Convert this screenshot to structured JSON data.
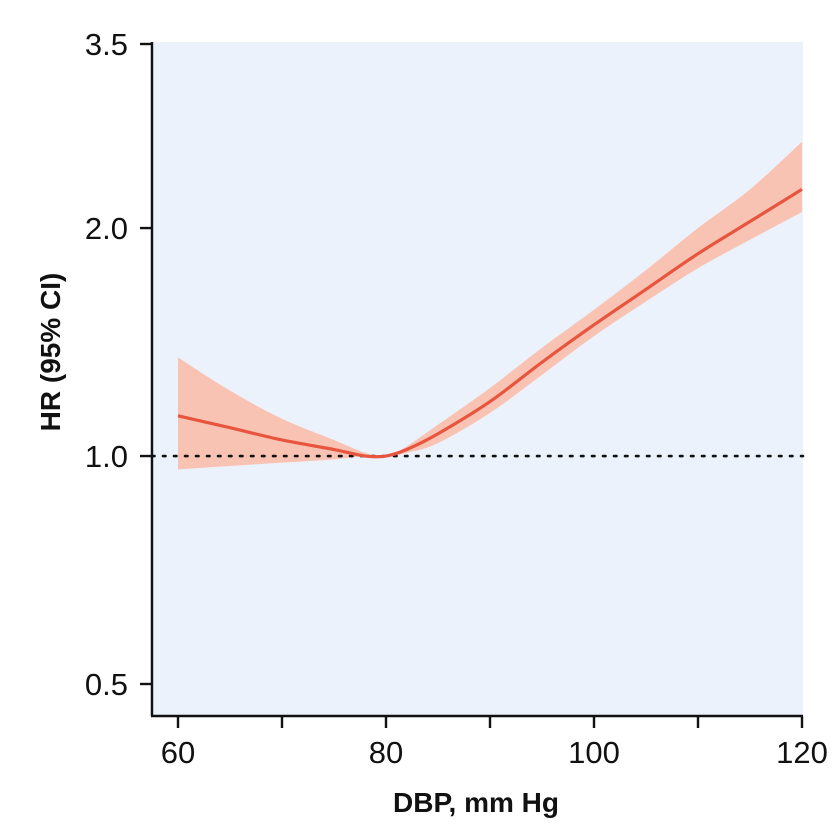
{
  "chart_data": {
    "type": "line",
    "title": "",
    "xlabel": "DBP, mm Hg",
    "ylabel": "HR (95% CI)",
    "xlim": [
      60,
      120
    ],
    "ylim": [
      0.5,
      3.5
    ],
    "y_scale": "log",
    "x_ticks": [
      60,
      70,
      80,
      90,
      100,
      110,
      120
    ],
    "x_tick_labels": [
      {
        "value": 60,
        "label": "60"
      },
      {
        "value": 80,
        "label": "80"
      },
      {
        "value": 100,
        "label": "100"
      },
      {
        "value": 120,
        "label": "120"
      }
    ],
    "y_tick_labels": [
      {
        "value": 0.5,
        "label": "0.5"
      },
      {
        "value": 1.0,
        "label": "1.0"
      },
      {
        "value": 2.0,
        "label": "2.0"
      },
      {
        "value": 3.5,
        "label": "3.5"
      }
    ],
    "reference_line": {
      "y": 1.0,
      "style": "dotted"
    },
    "grid": false,
    "legend": "none",
    "colors": {
      "plot_background": "#ecf2fb",
      "line": "#e8553f",
      "band": "#f9c3b3",
      "axis": "#111111"
    },
    "series": [
      {
        "x": [
          60,
          65,
          70,
          75,
          78,
          80,
          82,
          85,
          90,
          95,
          100,
          105,
          110,
          115,
          120
        ],
        "y": [
          1.13,
          1.09,
          1.05,
          1.02,
          1.0,
          1.0,
          1.02,
          1.07,
          1.18,
          1.33,
          1.49,
          1.66,
          1.85,
          2.04,
          2.25
        ],
        "lower": [
          0.96,
          0.97,
          0.98,
          0.99,
          1.0,
          1.0,
          1.01,
          1.04,
          1.14,
          1.28,
          1.44,
          1.6,
          1.77,
          1.93,
          2.1
        ],
        "upper": [
          1.35,
          1.22,
          1.12,
          1.05,
          1.01,
          1.0,
          1.03,
          1.1,
          1.23,
          1.39,
          1.56,
          1.76,
          2.0,
          2.25,
          2.6
        ]
      }
    ]
  }
}
